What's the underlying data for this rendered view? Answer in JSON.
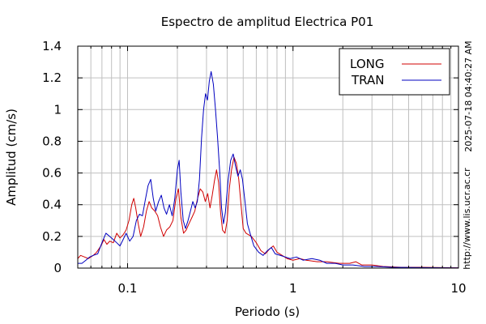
{
  "chart_data": {
    "type": "line",
    "title": "Espectro de amplitud Electrica P01",
    "xlabel": "Periodo (s)",
    "ylabel": "Amplitud (cm/s)",
    "xscale": "log",
    "xlim": [
      0.05,
      10
    ],
    "ylim": [
      0,
      1.4
    ],
    "grid": true,
    "legend_position": "top-right",
    "x_tick_labels": [
      {
        "value": 0.1,
        "label": "0.1"
      },
      {
        "value": 1,
        "label": "1"
      },
      {
        "value": 10,
        "label": "10"
      }
    ],
    "y_tick_labels": [
      {
        "value": 0,
        "label": "0"
      },
      {
        "value": 0.2,
        "label": "0.2"
      },
      {
        "value": 0.4,
        "label": "0.4"
      },
      {
        "value": 0.6,
        "label": "0.6"
      },
      {
        "value": 0.8,
        "label": "0.8"
      },
      {
        "value": 1.0,
        "label": "1"
      },
      {
        "value": 1.2,
        "label": "1.2"
      },
      {
        "value": 1.4,
        "label": "1.4"
      }
    ],
    "series": [
      {
        "name": "LONG",
        "color": "#d00000",
        "points": [
          [
            0.05,
            0.06
          ],
          [
            0.052,
            0.08
          ],
          [
            0.055,
            0.07
          ],
          [
            0.058,
            0.06
          ],
          [
            0.062,
            0.08
          ],
          [
            0.065,
            0.1
          ],
          [
            0.069,
            0.14
          ],
          [
            0.072,
            0.18
          ],
          [
            0.075,
            0.15
          ],
          [
            0.078,
            0.17
          ],
          [
            0.082,
            0.16
          ],
          [
            0.086,
            0.22
          ],
          [
            0.09,
            0.19
          ],
          [
            0.094,
            0.21
          ],
          [
            0.098,
            0.24
          ],
          [
            0.102,
            0.3
          ],
          [
            0.106,
            0.4
          ],
          [
            0.109,
            0.44
          ],
          [
            0.112,
            0.38
          ],
          [
            0.116,
            0.28
          ],
          [
            0.12,
            0.2
          ],
          [
            0.125,
            0.26
          ],
          [
            0.13,
            0.36
          ],
          [
            0.135,
            0.42
          ],
          [
            0.14,
            0.38
          ],
          [
            0.146,
            0.36
          ],
          [
            0.152,
            0.33
          ],
          [
            0.158,
            0.26
          ],
          [
            0.165,
            0.2
          ],
          [
            0.172,
            0.24
          ],
          [
            0.18,
            0.26
          ],
          [
            0.188,
            0.3
          ],
          [
            0.196,
            0.44
          ],
          [
            0.203,
            0.5
          ],
          [
            0.21,
            0.32
          ],
          [
            0.218,
            0.22
          ],
          [
            0.226,
            0.24
          ],
          [
            0.235,
            0.28
          ],
          [
            0.245,
            0.32
          ],
          [
            0.255,
            0.36
          ],
          [
            0.265,
            0.44
          ],
          [
            0.275,
            0.5
          ],
          [
            0.285,
            0.48
          ],
          [
            0.295,
            0.42
          ],
          [
            0.305,
            0.47
          ],
          [
            0.315,
            0.38
          ],
          [
            0.325,
            0.46
          ],
          [
            0.335,
            0.55
          ],
          [
            0.345,
            0.62
          ],
          [
            0.355,
            0.54
          ],
          [
            0.365,
            0.35
          ],
          [
            0.375,
            0.24
          ],
          [
            0.388,
            0.22
          ],
          [
            0.4,
            0.3
          ],
          [
            0.412,
            0.5
          ],
          [
            0.425,
            0.62
          ],
          [
            0.44,
            0.7
          ],
          [
            0.455,
            0.66
          ],
          [
            0.47,
            0.56
          ],
          [
            0.485,
            0.4
          ],
          [
            0.5,
            0.25
          ],
          [
            0.52,
            0.22
          ],
          [
            0.54,
            0.21
          ],
          [
            0.56,
            0.2
          ],
          [
            0.6,
            0.16
          ],
          [
            0.64,
            0.11
          ],
          [
            0.68,
            0.09
          ],
          [
            0.72,
            0.12
          ],
          [
            0.76,
            0.14
          ],
          [
            0.8,
            0.1
          ],
          [
            0.86,
            0.08
          ],
          [
            0.92,
            0.06
          ],
          [
            1.0,
            0.05
          ],
          [
            1.1,
            0.06
          ],
          [
            1.2,
            0.05
          ],
          [
            1.4,
            0.04
          ],
          [
            1.6,
            0.04
          ],
          [
            1.9,
            0.03
          ],
          [
            2.2,
            0.03
          ],
          [
            2.4,
            0.04
          ],
          [
            2.6,
            0.02
          ],
          [
            3.0,
            0.02
          ],
          [
            3.5,
            0.01
          ],
          [
            4.5,
            0.005
          ],
          [
            6,
            0.005
          ],
          [
            8,
            0.003
          ],
          [
            10,
            0.002
          ]
        ]
      },
      {
        "name": "TRAN",
        "color": "#0000c0",
        "points": [
          [
            0.05,
            0.03
          ],
          [
            0.053,
            0.03
          ],
          [
            0.056,
            0.05
          ],
          [
            0.059,
            0.07
          ],
          [
            0.062,
            0.08
          ],
          [
            0.066,
            0.09
          ],
          [
            0.07,
            0.16
          ],
          [
            0.074,
            0.22
          ],
          [
            0.078,
            0.2
          ],
          [
            0.082,
            0.18
          ],
          [
            0.086,
            0.16
          ],
          [
            0.09,
            0.14
          ],
          [
            0.094,
            0.18
          ],
          [
            0.098,
            0.22
          ],
          [
            0.103,
            0.17
          ],
          [
            0.108,
            0.2
          ],
          [
            0.113,
            0.3
          ],
          [
            0.118,
            0.34
          ],
          [
            0.123,
            0.33
          ],
          [
            0.128,
            0.43
          ],
          [
            0.133,
            0.52
          ],
          [
            0.138,
            0.56
          ],
          [
            0.143,
            0.44
          ],
          [
            0.148,
            0.36
          ],
          [
            0.154,
            0.42
          ],
          [
            0.16,
            0.46
          ],
          [
            0.166,
            0.38
          ],
          [
            0.172,
            0.34
          ],
          [
            0.179,
            0.4
          ],
          [
            0.186,
            0.33
          ],
          [
            0.193,
            0.44
          ],
          [
            0.2,
            0.62
          ],
          [
            0.205,
            0.68
          ],
          [
            0.21,
            0.48
          ],
          [
            0.217,
            0.3
          ],
          [
            0.224,
            0.25
          ],
          [
            0.232,
            0.3
          ],
          [
            0.24,
            0.36
          ],
          [
            0.248,
            0.42
          ],
          [
            0.256,
            0.38
          ],
          [
            0.264,
            0.42
          ],
          [
            0.272,
            0.56
          ],
          [
            0.28,
            0.82
          ],
          [
            0.288,
            1.0
          ],
          [
            0.296,
            1.1
          ],
          [
            0.304,
            1.06
          ],
          [
            0.312,
            1.18
          ],
          [
            0.32,
            1.24
          ],
          [
            0.33,
            1.16
          ],
          [
            0.34,
            1.0
          ],
          [
            0.35,
            0.82
          ],
          [
            0.36,
            0.62
          ],
          [
            0.37,
            0.38
          ],
          [
            0.38,
            0.28
          ],
          [
            0.39,
            0.35
          ],
          [
            0.405,
            0.55
          ],
          [
            0.42,
            0.68
          ],
          [
            0.435,
            0.72
          ],
          [
            0.45,
            0.64
          ],
          [
            0.465,
            0.58
          ],
          [
            0.48,
            0.62
          ],
          [
            0.495,
            0.56
          ],
          [
            0.51,
            0.44
          ],
          [
            0.53,
            0.28
          ],
          [
            0.55,
            0.22
          ],
          [
            0.58,
            0.14
          ],
          [
            0.62,
            0.1
          ],
          [
            0.66,
            0.08
          ],
          [
            0.7,
            0.11
          ],
          [
            0.74,
            0.13
          ],
          [
            0.78,
            0.09
          ],
          [
            0.84,
            0.08
          ],
          [
            0.9,
            0.07
          ],
          [
            0.96,
            0.06
          ],
          [
            1.05,
            0.07
          ],
          [
            1.15,
            0.05
          ],
          [
            1.3,
            0.06
          ],
          [
            1.45,
            0.05
          ],
          [
            1.6,
            0.03
          ],
          [
            1.8,
            0.03
          ],
          [
            2.0,
            0.02
          ],
          [
            2.3,
            0.02
          ],
          [
            2.7,
            0.01
          ],
          [
            3.2,
            0.01
          ],
          [
            4,
            0.005
          ],
          [
            6,
            0.003
          ],
          [
            8,
            0.002
          ],
          [
            10,
            0.001
          ]
        ]
      }
    ]
  },
  "side_text": {
    "timestamp": "2025-07-18 04:40:27 AM",
    "url": "http://www.lis.ucr.ac.cr"
  }
}
